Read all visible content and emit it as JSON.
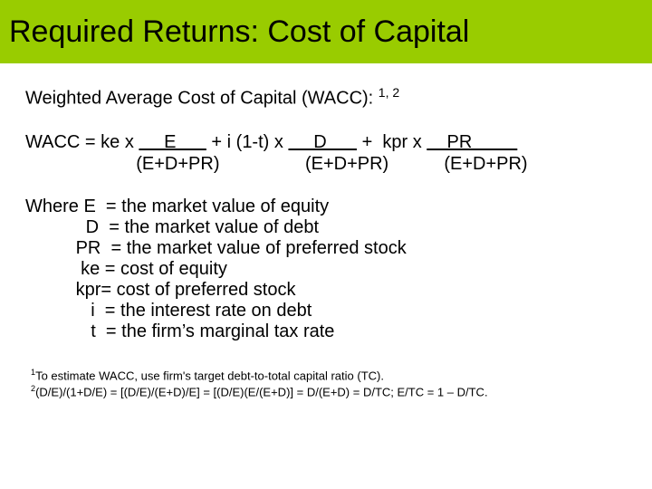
{
  "colors": {
    "title_bar_bg": "#99cc00",
    "text": "#000000",
    "page_bg": "#ffffff"
  },
  "title": "Required Returns: Cost of Capital",
  "subtitle_prefix": "Weighted Average Cost of Capital (WACC): ",
  "subtitle_sup": "1, 2",
  "formula": {
    "line1_a": "WACC = ke x ",
    "line1_e": "     E      ",
    "line1_b": " + i (1-t) x ",
    "line1_d": "     D      ",
    "line1_c": " +  kpr x ",
    "line1_pr": "    PR         ",
    "line2": "                      (E+D+PR)                 (E+D+PR)           (E+D+PR)"
  },
  "where": {
    "l1": "Where E  = the market value of equity",
    "l2": "            D  = the market value of debt",
    "l3": "          PR  = the market value of preferred stock",
    "l4": "           ke = cost of equity",
    "l5": "          kpr= cost of preferred stock",
    "l6": "             i  = the interest rate on debt",
    "l7": "             t  = the firm’s marginal tax rate"
  },
  "footnotes": {
    "f1_sup": "1",
    "f1": "To estimate WACC, use firm's target debt-to-total capital ratio (TC).",
    "f2_sup": "2",
    "f2": "(D/E)/(1+D/E) = [(D/E)/(E+D)/E] = [(D/E)(E/(E+D)] = D/(E+D) = D/TC; E/TC = 1 – D/TC."
  }
}
